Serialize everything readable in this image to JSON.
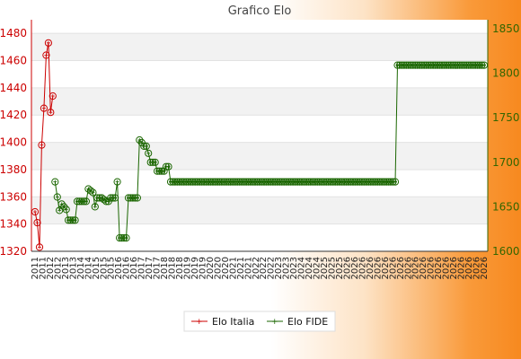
{
  "chart_data": {
    "type": "line",
    "title": "Grafico Elo",
    "grid": true,
    "legend_position": "bottom-center",
    "y_left": {
      "range": [
        1320,
        1490
      ],
      "ticks": [
        1320,
        1340,
        1360,
        1380,
        1400,
        1420,
        1440,
        1460,
        1480
      ],
      "color": "#cc0000"
    },
    "y_right": {
      "range": [
        1600,
        1860
      ],
      "ticks": [
        1600,
        1650,
        1700,
        1750,
        1800,
        1850
      ],
      "color": "#336600"
    },
    "series": [
      {
        "name": "Elo Italia",
        "axis": "left",
        "color": "#cc0000",
        "start_index": 0,
        "values": [
          1349,
          1341,
          1323,
          1398,
          1425,
          1464,
          1473,
          1422,
          1434
        ]
      },
      {
        "name": "Elo FIDE",
        "axis": "right",
        "color": "#1a6600",
        "start_index": 9,
        "values": [
          1678,
          1661,
          1646,
          1653,
          1650,
          1647,
          1635,
          1635,
          1635,
          1635,
          1656,
          1656,
          1656,
          1656,
          1656,
          1670,
          1668,
          1666,
          1650,
          1660,
          1660,
          1660,
          1658,
          1656,
          1656,
          1660,
          1660,
          1660,
          1678,
          1615,
          1615,
          1615,
          1615,
          1660,
          1660,
          1660,
          1660,
          1660,
          1725,
          1722,
          1718,
          1718,
          1710,
          1700,
          1700,
          1700,
          1690,
          1690,
          1690,
          1690,
          1695,
          1695,
          1678,
          1678,
          1678,
          1678,
          1678,
          1678,
          1678,
          1678,
          1678,
          1678,
          1678,
          1678,
          1678,
          1678,
          1678,
          1678,
          1678,
          1678,
          1678,
          1678,
          1678,
          1678,
          1678,
          1678,
          1678,
          1678,
          1678,
          1678,
          1678,
          1678,
          1678,
          1678,
          1678,
          1678,
          1678,
          1678,
          1678,
          1678,
          1678,
          1678,
          1678,
          1678,
          1678,
          1678,
          1678,
          1678,
          1678,
          1678,
          1678,
          1678,
          1678,
          1678,
          1678,
          1678,
          1678,
          1678,
          1678,
          1678,
          1678,
          1678,
          1678,
          1678,
          1678,
          1678,
          1678,
          1678,
          1678,
          1678,
          1678,
          1678,
          1678,
          1678,
          1678,
          1678,
          1678,
          1678,
          1678,
          1678,
          1678,
          1678,
          1678,
          1678,
          1678,
          1678,
          1678,
          1678,
          1678,
          1678,
          1678,
          1678,
          1678,
          1678,
          1678,
          1678,
          1678,
          1678,
          1678,
          1678,
          1678,
          1678,
          1678,
          1678,
          1809,
          1809,
          1809,
          1809,
          1809,
          1809,
          1809,
          1809,
          1809,
          1809,
          1809,
          1809,
          1809,
          1809,
          1809,
          1809,
          1809,
          1809,
          1809,
          1809,
          1809,
          1809,
          1809,
          1809,
          1809,
          1809,
          1809,
          1809,
          1809,
          1809,
          1809,
          1809,
          1809,
          1809,
          1809,
          1809,
          1809,
          1809,
          1809,
          1809
        ]
      }
    ],
    "x_tick_labels": [
      "2011",
      "2011",
      "2012",
      "2012",
      "2013",
      "2013",
      "2014",
      "2014",
      "2015",
      "2015",
      "2015",
      "2016",
      "2016",
      "2016",
      "2017",
      "2017",
      "2017",
      "2018",
      "2018",
      "2018",
      "2019",
      "2019",
      "2019",
      "2020",
      "2020",
      "2020",
      "2021",
      "2021",
      "2021",
      "2022",
      "2022",
      "2022",
      "2023",
      "2023",
      "2023",
      "2024",
      "2024",
      "2024",
      "2025",
      "2025",
      "2025",
      "2026",
      "2026",
      "2026",
      "2026",
      "2026",
      "2026",
      "2026",
      "2026",
      "2026",
      "2026",
      "2026",
      "2026",
      "2026",
      "2026",
      "2026",
      "2026",
      "2026",
      "2026",
      "2026"
    ]
  }
}
